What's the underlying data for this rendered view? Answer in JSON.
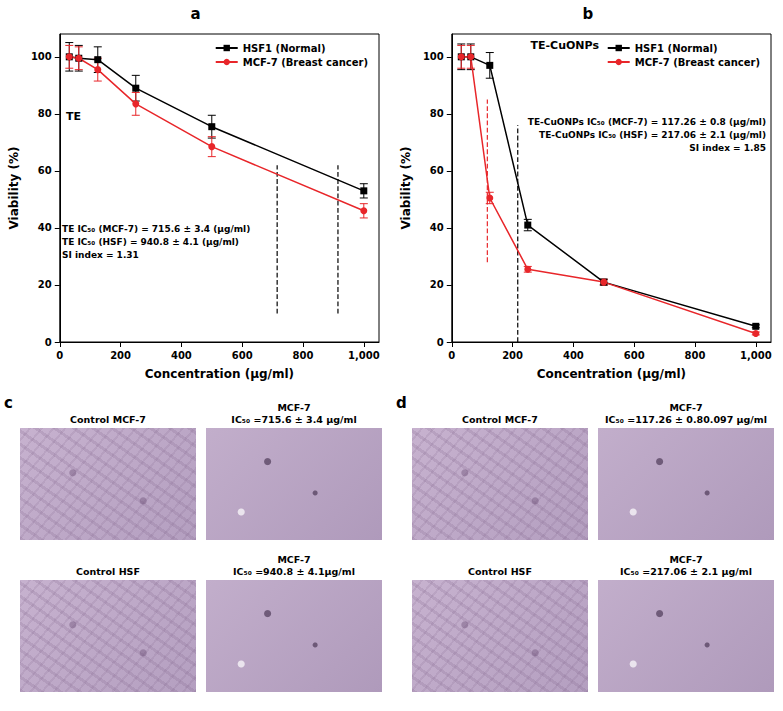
{
  "chart_data": [
    {
      "panel": "a",
      "type": "line",
      "title": "TE",
      "x_label": "Concentration (µg/ml)",
      "y_label": "Viability (%)",
      "x": [
        31.25,
        62.5,
        125,
        250,
        500,
        1000
      ],
      "series": [
        {
          "name": "HSF1 (Normal)",
          "color": "#000000",
          "marker": "square",
          "values": [
            100,
            99.5,
            99,
            89,
            75.5,
            53
          ],
          "errors": [
            5,
            4.5,
            4.5,
            4.5,
            4,
            2.5
          ]
        },
        {
          "name": "MCF-7 (Breast cancer)",
          "color": "#e8262a",
          "marker": "circle",
          "values": [
            100,
            99.5,
            95.5,
            83.5,
            68.5,
            46
          ],
          "errors": [
            4,
            4,
            4,
            4,
            3.5,
            2.5
          ]
        }
      ],
      "reference_lines": [
        {
          "x": 715,
          "y": [
            10,
            62
          ],
          "color": "#000000",
          "line_style": "dashed"
        },
        {
          "x": 915,
          "y": [
            10,
            62
          ],
          "color": "#000000",
          "line_style": "dashed"
        }
      ],
      "annotations": [
        "TE IC₅₀ (MCF-7) = 715.6 ± 3.4 (µg/ml)",
        "TE IC₅₀ (HSF) = 940.8 ± 4.1 (µg/ml)",
        "SI index = 1.31"
      ],
      "xlim": [
        0,
        1050
      ],
      "xticks": [
        0,
        200,
        400,
        600,
        800,
        1000
      ],
      "ylim": [
        0,
        108
      ],
      "yticks": [
        0,
        20,
        40,
        60,
        80,
        100
      ],
      "grid": false,
      "legend": "upper right"
    },
    {
      "panel": "b",
      "type": "line",
      "title": "TE-CuONPs",
      "x_label": "Concentration (µg/ml)",
      "y_label": "Viability (%)",
      "x": [
        31.25,
        62.5,
        125,
        250,
        500,
        1000
      ],
      "series": [
        {
          "name": "HSF1 (Normal)",
          "color": "#000000",
          "marker": "square",
          "values": [
            100,
            100,
            97,
            41,
            21,
            5.5
          ],
          "errors": [
            4.5,
            4.5,
            4.5,
            2,
            1,
            0.5
          ]
        },
        {
          "name": "MCF-7 (Breast cancer)",
          "color": "#e8262a",
          "marker": "circle",
          "values": [
            100,
            100,
            50.5,
            25.5,
            21,
            3
          ],
          "errors": [
            4,
            4,
            2,
            1,
            1,
            0.5
          ]
        }
      ],
      "reference_lines": [
        {
          "x": 117,
          "y": [
            28,
            85
          ],
          "color": "#e8262a",
          "line_style": "dashed"
        },
        {
          "x": 217,
          "y": [
            0,
            76
          ],
          "color": "#000000",
          "line_style": "dashed"
        }
      ],
      "annotations": [
        "TE-CuONPs IC₅₀ (MCF-7) = 117.26 ± 0.8 (µg/ml)",
        "TE-CuONPs IC₅₀ (HSF) = 217.06 ± 2.1 (µg/ml)",
        "SI index = 1.85"
      ],
      "xlim": [
        0,
        1050
      ],
      "xticks": [
        0,
        200,
        400,
        600,
        800,
        1000
      ],
      "ylim": [
        0,
        108
      ],
      "yticks": [
        0,
        20,
        40,
        60,
        80,
        100
      ],
      "grid": false,
      "legend": "upper right"
    }
  ],
  "image_panels": [
    {
      "panel": "c",
      "images": [
        {
          "title": [
            "Control MCF-7"
          ],
          "treated": false
        },
        {
          "title": [
            "MCF-7",
            "IC₅₀ =715.6 ± 3.4 µg/ml"
          ],
          "treated": true
        },
        {
          "title": [
            "Control HSF"
          ],
          "treated": false
        },
        {
          "title": [
            "MCF-7",
            "IC₅₀ =940.8 ± 4.1µg/ml"
          ],
          "treated": true
        }
      ]
    },
    {
      "panel": "d",
      "images": [
        {
          "title": [
            "Control MCF-7"
          ],
          "treated": false
        },
        {
          "title": [
            "MCF-7",
            "IC₅₀ =117.26 ± 0.80.097 µg/ml"
          ],
          "treated": true
        },
        {
          "title": [
            "Control HSF"
          ],
          "treated": false
        },
        {
          "title": [
            "MCF-7",
            "IC₅₀ =217.06 ± 2.1 µg/ml"
          ],
          "treated": true
        }
      ]
    }
  ]
}
